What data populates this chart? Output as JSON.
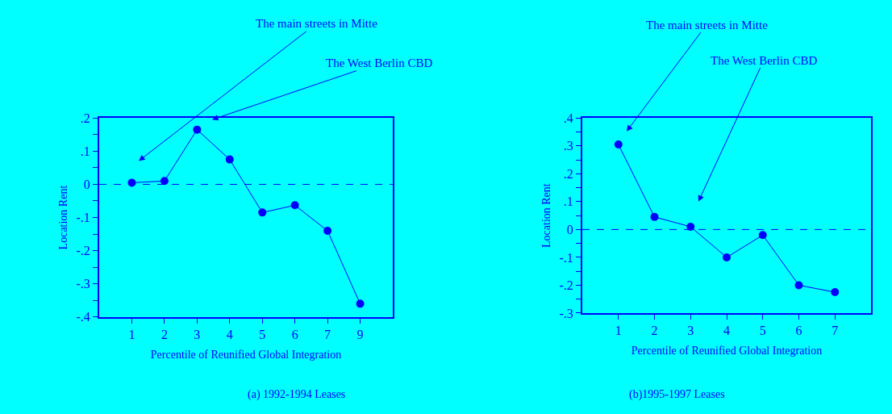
{
  "chart_data": [
    {
      "type": "line",
      "title": "(a) 1992-1994 Leases",
      "xlabel": "Percentile of Reunified Global Integration",
      "ylabel": "Location Rent",
      "categories": [
        "1",
        "2",
        "3",
        "4",
        "5",
        "6",
        "7",
        "9"
      ],
      "series": [
        {
          "color": "#0000ff",
          "values": [
            0.005,
            0.01,
            0.165,
            0.075,
            -0.085,
            -0.063,
            -0.14,
            -0.36
          ]
        }
      ],
      "ylim": [
        -0.4,
        0.2
      ],
      "yticks": [
        {
          "value": -0.4,
          "label": "-.4"
        },
        {
          "value": -0.35,
          "label": null
        },
        {
          "value": -0.3,
          "label": "-.3"
        },
        {
          "value": -0.25,
          "label": null
        },
        {
          "value": -0.2,
          "label": "-.2"
        },
        {
          "value": -0.15,
          "label": null
        },
        {
          "value": -0.1,
          "label": "-.1"
        },
        {
          "value": -0.05,
          "label": null
        },
        0,
        {
          "value": 0.05,
          "label": null
        },
        {
          "value": 0.1,
          "label": ".1"
        },
        {
          "value": 0.15,
          "label": null
        },
        {
          "value": 0.2,
          "label": ".2"
        }
      ],
      "ref_lines": [
        {
          "axis": "y",
          "value": 0,
          "color": "#0000ff",
          "line_style": "dashed"
        }
      ],
      "annotations": [
        "The main streets in Mitte",
        "The West Berlin CBD"
      ],
      "marker": "circle",
      "line_style": "solid",
      "grid": false,
      "legend": false
    },
    {
      "type": "line",
      "title": "(b)1995-1997 Leases",
      "xlabel": "Percentile of Reunified Global Integration",
      "ylabel": "Location Rent",
      "categories": [
        "1",
        "2",
        "3",
        "4",
        "5",
        "6",
        "7"
      ],
      "series": [
        {
          "color": "#0000ff",
          "values": [
            0.305,
            0.045,
            0.01,
            -0.1,
            -0.02,
            -0.2,
            -0.225
          ]
        }
      ],
      "ylim": [
        -0.3,
        0.4
      ],
      "yticks": [
        {
          "value": -0.3,
          "label": "-.3"
        },
        {
          "value": -0.25,
          "label": null
        },
        {
          "value": -0.2,
          "label": "-.2"
        },
        {
          "value": -0.15,
          "label": null
        },
        {
          "value": -0.1,
          "label": "-.1"
        },
        {
          "value": -0.05,
          "label": null
        },
        0,
        {
          "value": 0.05,
          "label": null
        },
        {
          "value": 0.1,
          "label": ".1"
        },
        {
          "value": 0.15,
          "label": null
        },
        {
          "value": 0.2,
          "label": ".2"
        },
        {
          "value": 0.25,
          "label": null
        },
        {
          "value": 0.3,
          "label": ".3"
        },
        {
          "value": 0.35,
          "label": null
        },
        {
          "value": 0.4,
          "label": ".4"
        }
      ],
      "ref_lines": [
        {
          "axis": "y",
          "value": 0,
          "color": "#0000ff",
          "line_style": "dashed"
        }
      ],
      "annotations": [
        "The main streets in Mitte",
        "The West Berlin CBD"
      ],
      "marker": "circle",
      "line_style": "solid",
      "grid": false,
      "legend": false
    }
  ]
}
